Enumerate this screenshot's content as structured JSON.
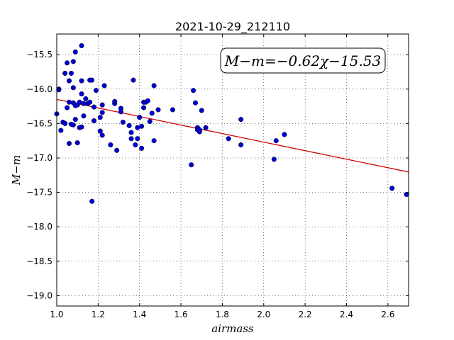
{
  "chart_data": {
    "type": "scatter",
    "title": "2021-10-29_212110",
    "xlabel": "airmass",
    "ylabel": "M−m",
    "xlim": [
      1.0,
      2.7
    ],
    "ylim": [
      -19.15,
      -15.2
    ],
    "y_inverted": true,
    "grid": true,
    "x_ticks": [
      1.0,
      1.2,
      1.4,
      1.6,
      1.8,
      2.0,
      2.2,
      2.4,
      2.6
    ],
    "x_tick_labels": [
      "1.0",
      "1.2",
      "1.4",
      "1.6",
      "1.8",
      "2.0",
      "2.2",
      "2.4",
      "2.6"
    ],
    "y_ticks": [
      -15.5,
      -16.0,
      -16.5,
      -17.0,
      -17.5,
      -18.0,
      -18.5,
      -19.0
    ],
    "y_tick_labels": [
      "−15.5",
      "−16.0",
      "−16.5",
      "−17.0",
      "−17.5",
      "−18.0",
      "−18.5",
      "−19.0"
    ],
    "annotation": "M−m=−0.62χ−15.53",
    "fit": {
      "slope": -0.62,
      "intercept": -15.53,
      "color": "#cc0000"
    },
    "point_color": "#0000cc",
    "points": [
      [
        1.0,
        -16.36
      ],
      [
        1.01,
        -16.0
      ],
      [
        1.01,
        -16.01
      ],
      [
        1.02,
        -16.6
      ],
      [
        1.03,
        -16.48
      ],
      [
        1.04,
        -16.5
      ],
      [
        1.04,
        -15.77
      ],
      [
        1.05,
        -15.62
      ],
      [
        1.05,
        -16.27
      ],
      [
        1.06,
        -16.79
      ],
      [
        1.06,
        -16.19
      ],
      [
        1.06,
        -15.88
      ],
      [
        1.07,
        -15.77
      ],
      [
        1.07,
        -16.51
      ],
      [
        1.08,
        -15.98
      ],
      [
        1.08,
        -15.6
      ],
      [
        1.08,
        -16.2
      ],
      [
        1.08,
        -16.52
      ],
      [
        1.09,
        -16.44
      ],
      [
        1.09,
        -16.24
      ],
      [
        1.09,
        -15.46
      ],
      [
        1.1,
        -16.23
      ],
      [
        1.1,
        -16.78
      ],
      [
        1.11,
        -16.19
      ],
      [
        1.11,
        -16.56
      ],
      [
        1.12,
        -16.55
      ],
      [
        1.12,
        -15.37
      ],
      [
        1.12,
        -15.88
      ],
      [
        1.12,
        -16.07
      ],
      [
        1.13,
        -16.39
      ],
      [
        1.13,
        -16.21
      ],
      [
        1.14,
        -16.14
      ],
      [
        1.15,
        -16.21
      ],
      [
        1.16,
        -16.19
      ],
      [
        1.16,
        -15.87
      ],
      [
        1.17,
        -15.87
      ],
      [
        1.17,
        -17.63
      ],
      [
        1.18,
        -16.46
      ],
      [
        1.18,
        -16.26
      ],
      [
        1.19,
        -16.02
      ],
      [
        1.21,
        -16.41
      ],
      [
        1.21,
        -16.61
      ],
      [
        1.22,
        -16.67
      ],
      [
        1.22,
        -16.23
      ],
      [
        1.22,
        -16.34
      ],
      [
        1.23,
        -15.95
      ],
      [
        1.26,
        -16.81
      ],
      [
        1.28,
        -16.21
      ],
      [
        1.28,
        -16.18
      ],
      [
        1.29,
        -16.89
      ],
      [
        1.31,
        -16.28
      ],
      [
        1.31,
        -16.33
      ],
      [
        1.32,
        -16.48
      ],
      [
        1.35,
        -16.53
      ],
      [
        1.36,
        -16.72
      ],
      [
        1.36,
        -16.63
      ],
      [
        1.37,
        -15.87
      ],
      [
        1.38,
        -16.81
      ],
      [
        1.39,
        -16.56
      ],
      [
        1.39,
        -16.72
      ],
      [
        1.4,
        -16.41
      ],
      [
        1.41,
        -16.86
      ],
      [
        1.41,
        -16.54
      ],
      [
        1.42,
        -16.19
      ],
      [
        1.42,
        -16.27
      ],
      [
        1.43,
        -16.19
      ],
      [
        1.44,
        -16.17
      ],
      [
        1.45,
        -16.47
      ],
      [
        1.46,
        -16.35
      ],
      [
        1.47,
        -16.75
      ],
      [
        1.47,
        -15.95
      ],
      [
        1.49,
        -16.3
      ],
      [
        1.56,
        -16.3
      ],
      [
        1.65,
        -17.1
      ],
      [
        1.66,
        -16.02
      ],
      [
        1.67,
        -16.2
      ],
      [
        1.68,
        -16.56
      ],
      [
        1.68,
        -16.59
      ],
      [
        1.69,
        -16.62
      ],
      [
        1.69,
        -16.59
      ],
      [
        1.7,
        -16.31
      ],
      [
        1.72,
        -16.56
      ],
      [
        1.83,
        -16.72
      ],
      [
        1.89,
        -16.44
      ],
      [
        1.89,
        -16.81
      ],
      [
        2.05,
        -17.02
      ],
      [
        2.06,
        -16.75
      ],
      [
        2.1,
        -16.66
      ],
      [
        2.62,
        -17.44
      ],
      [
        2.69,
        -17.53
      ]
    ]
  }
}
